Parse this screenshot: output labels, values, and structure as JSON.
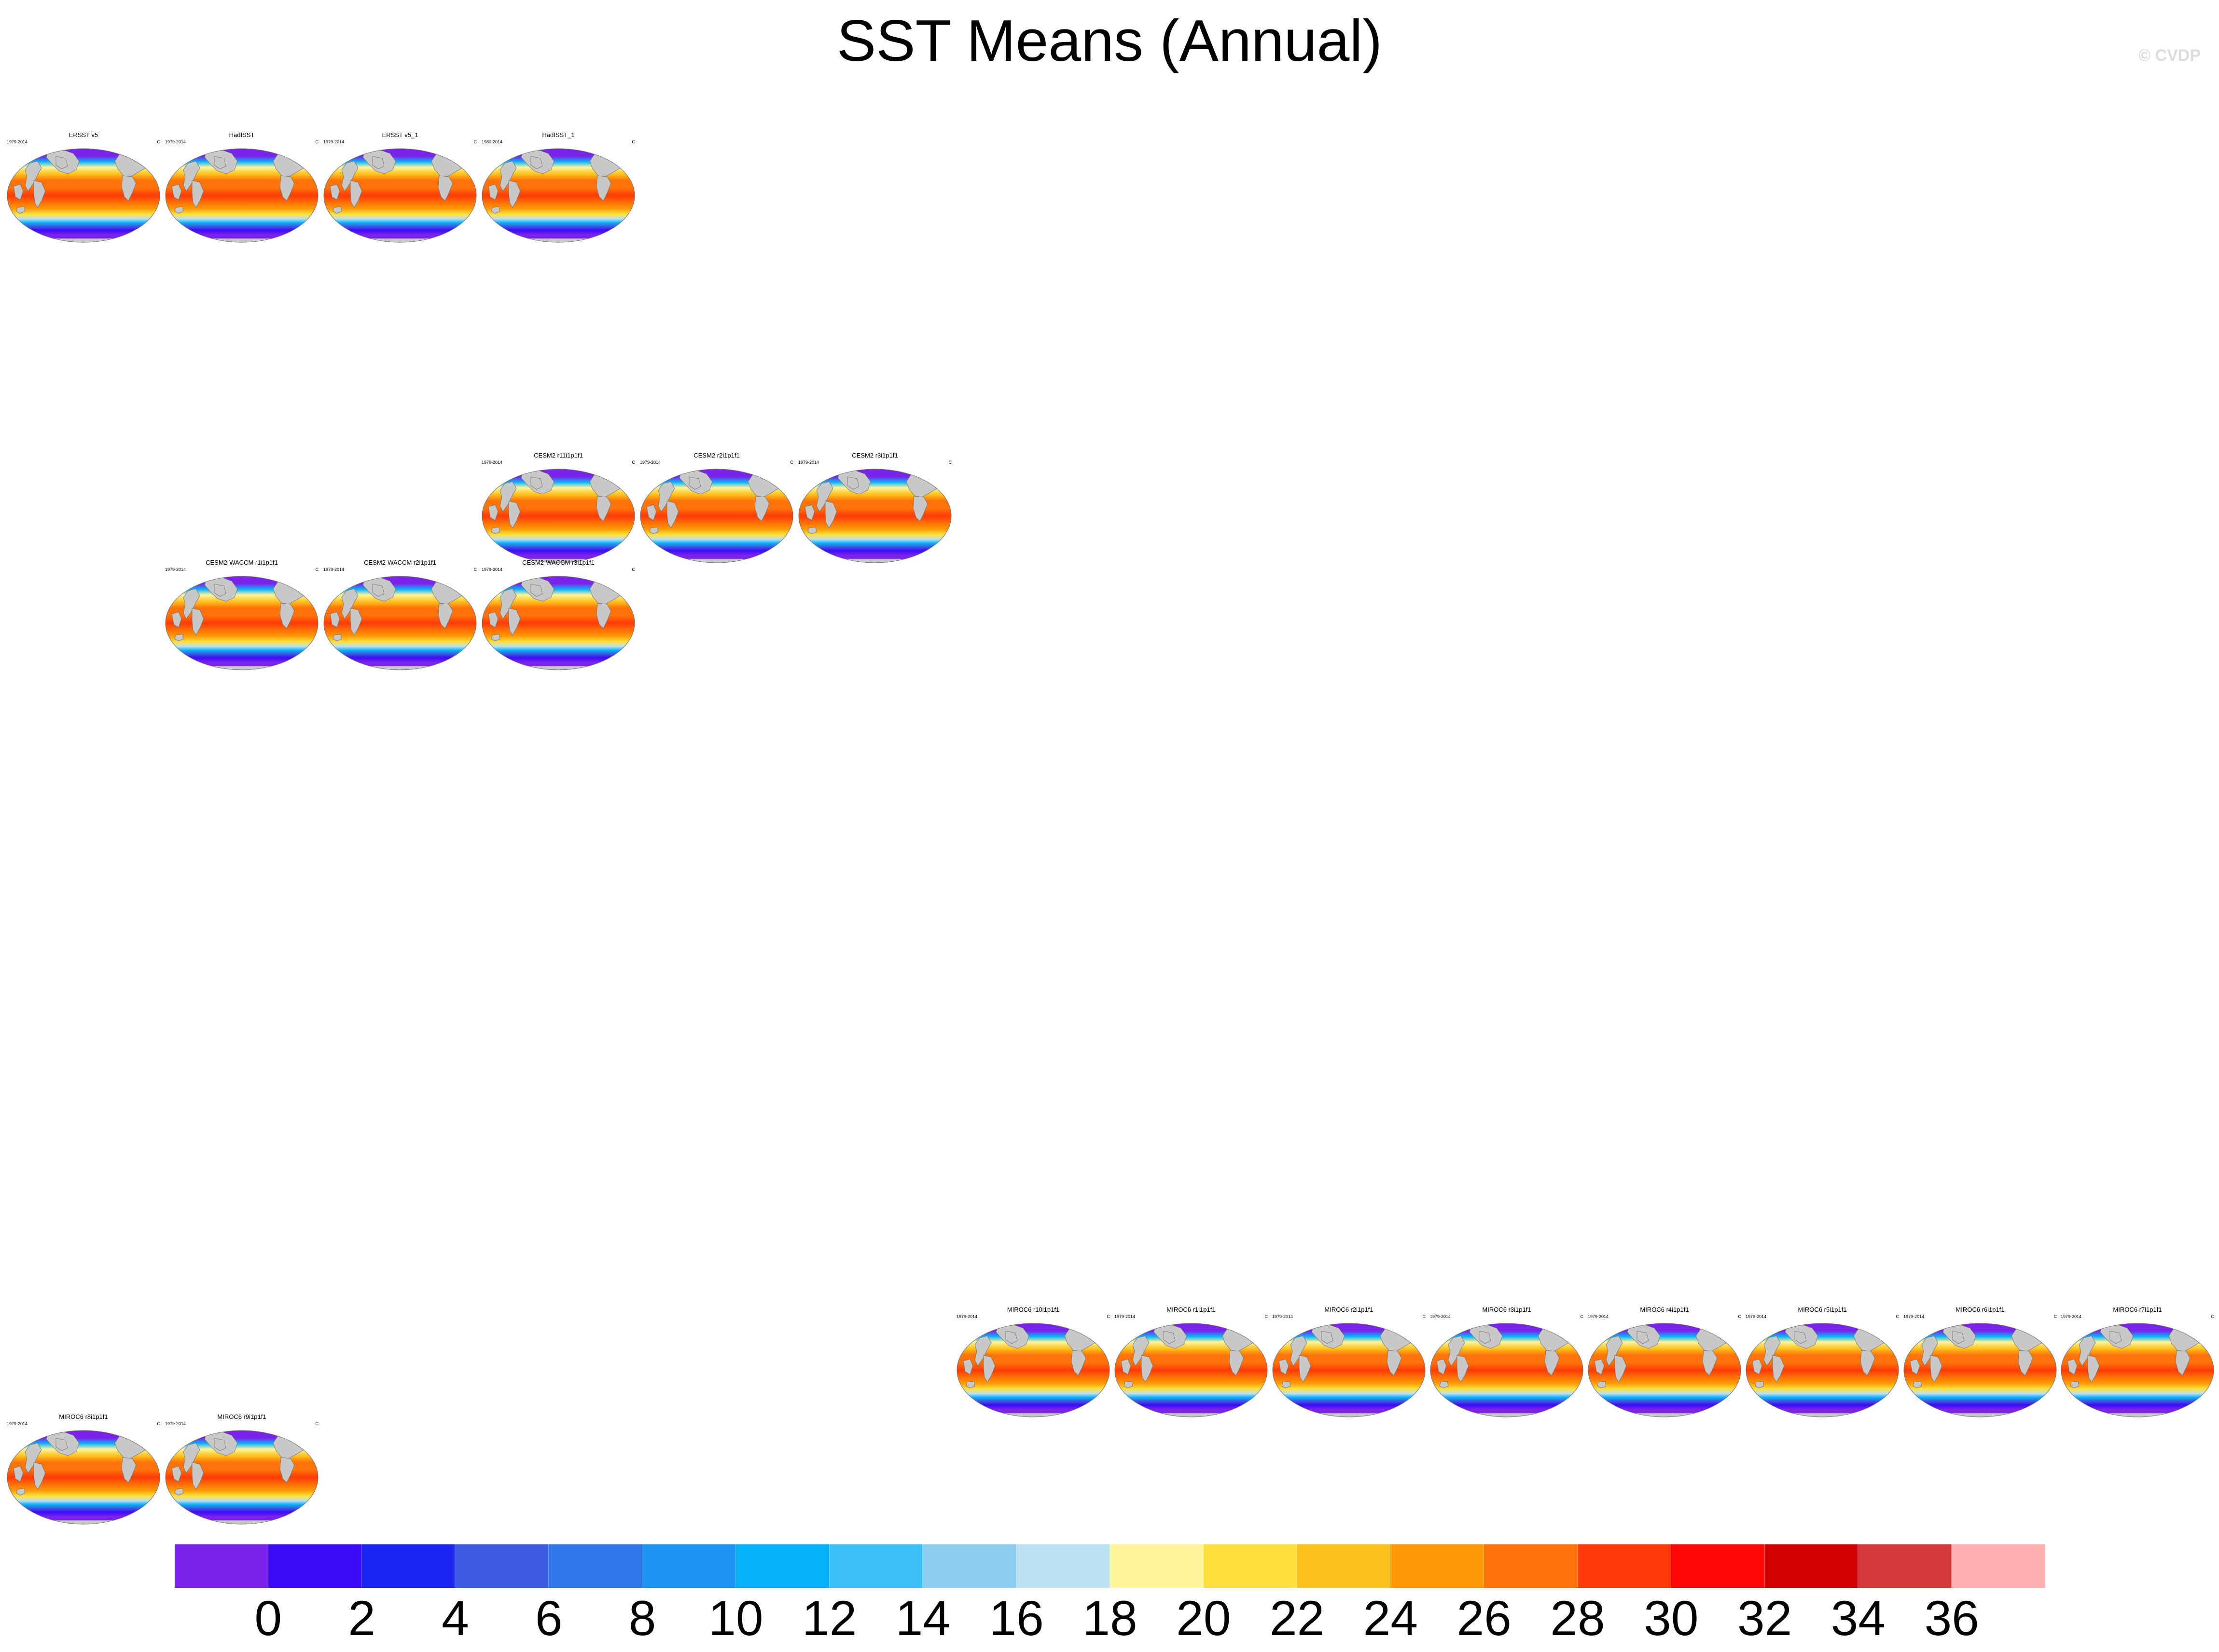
{
  "title": "SST Means (Annual)",
  "watermark": "© CVDP",
  "unit": "C",
  "colorbar": {
    "colors": [
      "#7B22EB",
      "#3A0CF8",
      "#1A26F0",
      "#3C5BE0",
      "#2E78EC",
      "#1C95F4",
      "#07B4FB",
      "#3CC1F6",
      "#8CCCEC",
      "#BCE0F4",
      "#FFF59A",
      "#FFE03A",
      "#FDC21E",
      "#FD9A05",
      "#FF7308",
      "#FF3A08",
      "#FF0505",
      "#D20302",
      "#D43A3A",
      "#FFB0B0"
    ],
    "labels": [
      "0",
      "2",
      "4",
      "6",
      "8",
      "10",
      "12",
      "14",
      "16",
      "18",
      "20",
      "22",
      "24",
      "26",
      "28",
      "30",
      "32",
      "34",
      "36"
    ]
  },
  "panels": [
    {
      "title": "ERSST v5",
      "years": "1979-2014"
    },
    {
      "title": "HadISST",
      "years": "1979-2014"
    },
    {
      "title": "ERSST v5_1",
      "years": "1979-2014"
    },
    {
      "title": "HadISST_1",
      "years": "1980-2014"
    },
    {
      "title": "CESM2 r11i1p1f1",
      "years": "1979-2014"
    },
    {
      "title": "CESM2 r2i1p1f1",
      "years": "1979-2014"
    },
    {
      "title": "CESM2 r3i1p1f1",
      "years": "1979-2014"
    },
    {
      "title": "CESM2-WACCM r1i1p1f1",
      "years": "1979-2014"
    },
    {
      "title": "CESM2-WACCM r2i1p1f1",
      "years": "1979-2014"
    },
    {
      "title": "CESM2-WACCM r3i1p1f1",
      "years": "1979-2014"
    },
    {
      "title": "MIROC6 r10i1p1f1",
      "years": "1979-2014"
    },
    {
      "title": "MIROC6 r1i1p1f1",
      "years": "1979-2014"
    },
    {
      "title": "MIROC6 r2i1p1f1",
      "years": "1979-2014"
    },
    {
      "title": "MIROC6 r3i1p1f1",
      "years": "1979-2014"
    },
    {
      "title": "MIROC6 r4i1p1f1",
      "years": "1979-2014"
    },
    {
      "title": "MIROC6 r5i1p1f1",
      "years": "1979-2014"
    },
    {
      "title": "MIROC6 r6i1p1f1",
      "years": "1979-2014"
    },
    {
      "title": "MIROC6 r7i1p1f1",
      "years": "1979-2014"
    },
    {
      "title": "MIROC6 r8i1p1f1",
      "years": "1979-2014"
    },
    {
      "title": "MIROC6 r9i1p1f1",
      "years": "1979-2014"
    }
  ]
}
